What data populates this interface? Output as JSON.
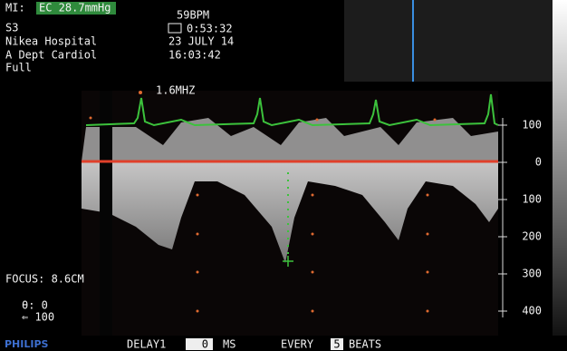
{
  "header": {
    "mi_label": "MI:",
    "pressure": "EC 28.7mmHg",
    "probe": "S3",
    "hospital": "Nikea Hospital",
    "department": "A Dept Cardiol",
    "mode": "Full",
    "heart_rate": "59BPM",
    "elapsed": "0:53:32",
    "date": "23 JULY 14",
    "time": "16:03:42"
  },
  "image": {
    "frequency": "1.6MHZ",
    "focus": "FOCUS: 8.6CM",
    "angle": "θ: 0",
    "zoom": "⇐ 100",
    "scale": [
      "100",
      "0",
      "100",
      "200",
      "300",
      "400"
    ]
  },
  "footer": {
    "brand": "PHILIPS",
    "delay_label": "DELAY1",
    "delay_value": "0",
    "delay_unit": "MS",
    "every_label": "EVERY",
    "every_value": "5",
    "beats_label": "BEATS"
  }
}
